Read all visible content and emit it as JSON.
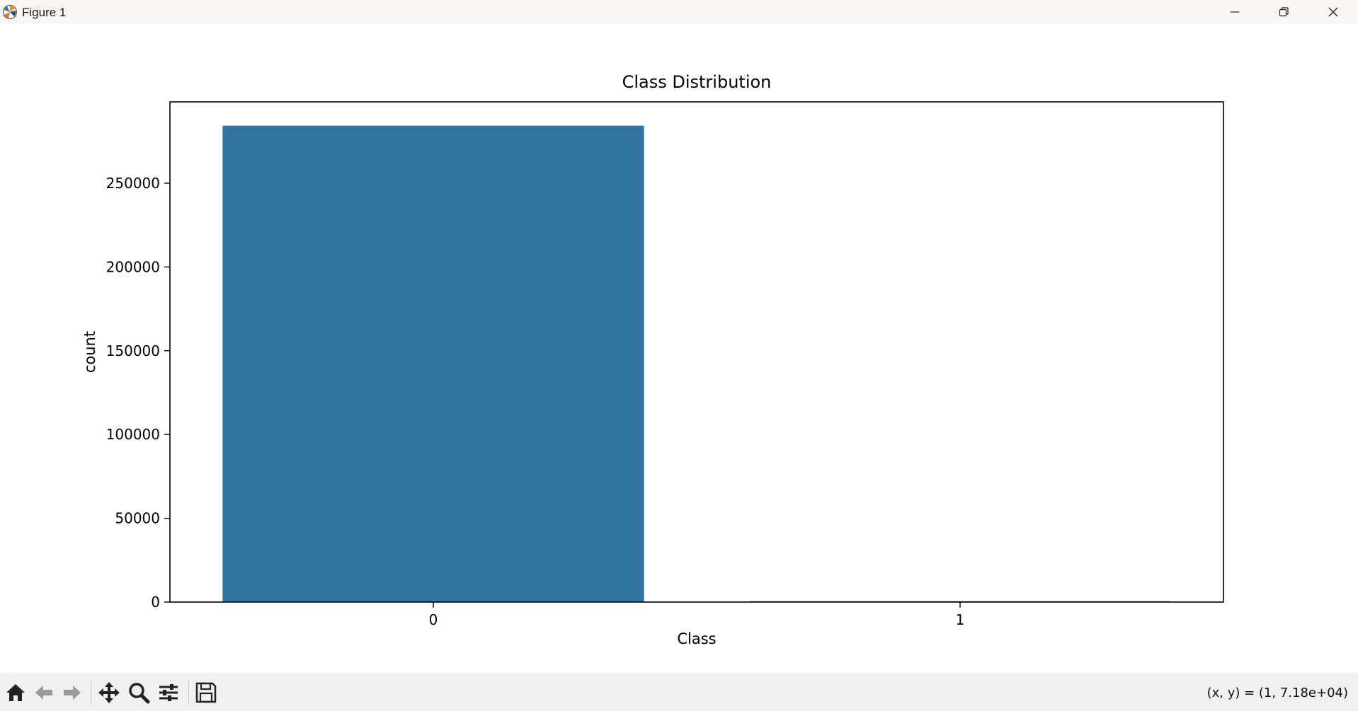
{
  "window": {
    "title": "Figure 1",
    "icons": {
      "app": "matplotlib-logo-icon",
      "minimize": "minimize-icon",
      "maximize": "restore-icon",
      "close": "close-icon"
    }
  },
  "toolbar": {
    "tools": [
      "home-icon",
      "back-arrow-icon",
      "forward-arrow-icon",
      "pan-move-icon",
      "zoom-magnifier-icon",
      "configure-subplots-icon",
      "save-floppy-icon"
    ],
    "coords_label": "(x, y) = (1, 7.18e+04)"
  },
  "colors": {
    "bar": "#3274a1",
    "axes": "#000000",
    "toolbar_bg": "#f0f0f0",
    "titlebar_bg": "#f9f6f1"
  },
  "chart_data": {
    "type": "bar",
    "title": "Class Distribution",
    "xlabel": "Class",
    "ylabel": "count",
    "categories": [
      "0",
      "1"
    ],
    "values": [
      284315,
      492
    ],
    "yticks": [
      0,
      50000,
      100000,
      150000,
      200000,
      250000
    ],
    "ytick_labels": [
      "0",
      "50000",
      "100000",
      "150000",
      "200000",
      "250000"
    ],
    "ylim": [
      0,
      298531
    ],
    "grid": false,
    "legend": "none"
  }
}
